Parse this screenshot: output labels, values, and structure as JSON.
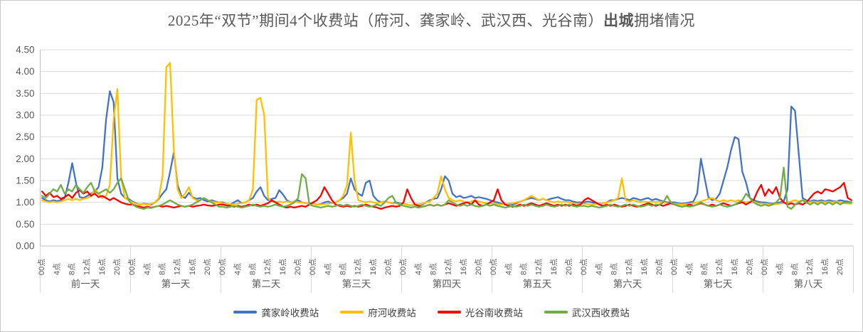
{
  "chart_data": {
    "type": "line",
    "title": {
      "full": "2025年“双节”期间4个收费站（府河、龚家岭、武汉西、光谷南）出城拥堵情况",
      "prefix": "2025年“双节”期间4个收费站（府河、龚家岭、武汉西、光谷南）",
      "bold": "出城",
      "suffix": "拥堵情况"
    },
    "y_axis": {
      "min": 0,
      "max": 4.5,
      "step": 0.5,
      "tick_decimals": 2
    },
    "grid": true,
    "legend_position": "bottom",
    "days": [
      "前一天",
      "第一天",
      "第二天",
      "第三天",
      "第四天",
      "第五天",
      "第六天",
      "第七天",
      "第八天"
    ],
    "hours_per_day": 24,
    "hour_tick_interval": 4,
    "hour_tick_labels": [
      "00点",
      "4点",
      "8点",
      "12点",
      "16点",
      "20点"
    ],
    "colors": {
      "gridline": "#d9d9d9",
      "axis": "#bfbfbf",
      "label_text": "#595959",
      "legend_text": "#404040"
    },
    "series": [
      {
        "name": "龚家岭收费站",
        "color": "#4472C4",
        "values": [
          1.1,
          1.05,
          1.02,
          1.05,
          1.03,
          1.05,
          1.1,
          1.45,
          1.9,
          1.45,
          1.12,
          1.1,
          1.15,
          1.2,
          1.25,
          1.35,
          1.8,
          2.9,
          3.55,
          3.3,
          1.55,
          1.2,
          1.1,
          1.08,
          1.02,
          0.98,
          0.95,
          0.97,
          0.96,
          0.95,
          1.0,
          1.08,
          1.2,
          1.3,
          1.7,
          2.15,
          1.4,
          1.15,
          1.1,
          1.22,
          1.12,
          1.08,
          1.1,
          1.05,
          1.02,
          1.05,
          1.02,
          1.0,
          1.0,
          0.97,
          0.95,
          1.0,
          1.05,
          0.98,
          1.0,
          1.05,
          1.1,
          1.25,
          1.35,
          1.15,
          1.05,
          1.08,
          1.1,
          1.28,
          1.18,
          1.05,
          1.0,
          1.02,
          1.05,
          1.0,
          0.98,
          0.97,
          0.98,
          0.95,
          0.96,
          1.0,
          1.02,
          0.98,
          1.0,
          1.05,
          1.1,
          1.2,
          1.55,
          1.3,
          1.2,
          1.15,
          1.45,
          1.5,
          1.15,
          1.05,
          1.0,
          1.02,
          1.0,
          0.98,
          1.0,
          0.98,
          0.97,
          0.95,
          0.93,
          0.95,
          0.96,
          0.95,
          1.0,
          1.05,
          1.08,
          1.1,
          1.3,
          1.6,
          1.5,
          1.2,
          1.12,
          1.15,
          1.1,
          1.12,
          1.15,
          1.1,
          1.12,
          1.1,
          1.08,
          1.05,
          1.02,
          1.0,
          0.97,
          0.95,
          0.96,
          0.95,
          0.98,
          1.02,
          1.05,
          1.08,
          1.1,
          1.08,
          1.05,
          1.08,
          1.05,
          1.08,
          1.1,
          1.12,
          1.08,
          1.05,
          1.05,
          1.02,
          1.0,
          1.0,
          1.0,
          1.02,
          1.0,
          0.98,
          0.97,
          0.98,
          1.0,
          1.05,
          1.05,
          1.08,
          1.1,
          1.08,
          1.05,
          1.1,
          1.08,
          1.05,
          1.08,
          1.1,
          1.05,
          1.08,
          1.05,
          1.02,
          1.0,
          1.0,
          1.0,
          0.98,
          0.97,
          0.98,
          1.0,
          1.02,
          1.2,
          2.0,
          1.55,
          1.12,
          1.05,
          1.08,
          1.2,
          1.5,
          1.8,
          2.2,
          2.5,
          2.45,
          1.7,
          1.45,
          1.1,
          1.05,
          1.02,
          1.0,
          1.0,
          0.98,
          0.97,
          0.98,
          1.0,
          1.02,
          1.3,
          3.2,
          3.1,
          2.1,
          1.1,
          1.05,
          1.02,
          1.05,
          1.03,
          1.05,
          1.02,
          1.05,
          1.03,
          1.02,
          1.05,
          1.03,
          1.02,
          1.0
        ]
      },
      {
        "name": "府河收费站",
        "color": "#FFC000",
        "values": [
          1.05,
          1.02,
          1.0,
          1.02,
          1.0,
          1.02,
          1.05,
          1.08,
          1.05,
          1.08,
          1.05,
          1.08,
          1.1,
          1.15,
          1.3,
          1.2,
          1.1,
          1.15,
          1.4,
          2.9,
          3.6,
          1.55,
          1.1,
          1.05,
          1.0,
          0.97,
          0.95,
          0.96,
          0.95,
          0.97,
          1.0,
          1.1,
          1.6,
          4.1,
          4.2,
          2.2,
          1.3,
          1.1,
          1.2,
          1.35,
          1.1,
          1.05,
          1.05,
          1.1,
          1.05,
          1.02,
          1.0,
          1.0,
          0.98,
          0.97,
          0.95,
          0.96,
          0.97,
          0.98,
          1.0,
          1.05,
          1.3,
          3.35,
          3.4,
          3.0,
          1.1,
          1.02,
          1.0,
          1.02,
          1.0,
          1.02,
          1.0,
          1.02,
          1.0,
          1.0,
          0.98,
          0.97,
          0.97,
          0.95,
          0.95,
          0.96,
          0.97,
          0.98,
          1.0,
          1.05,
          1.15,
          1.4,
          2.6,
          1.5,
          1.05,
          1.02,
          1.0,
          1.02,
          1.0,
          0.98,
          1.0,
          1.02,
          1.0,
          0.98,
          0.97,
          0.97,
          0.97,
          0.95,
          0.93,
          0.95,
          0.96,
          0.97,
          1.0,
          1.02,
          1.1,
          1.2,
          1.6,
          1.3,
          1.1,
          1.05,
          1.02,
          1.05,
          1.02,
          1.0,
          1.02,
          1.05,
          1.02,
          1.0,
          0.98,
          0.97,
          0.98,
          0.96,
          0.95,
          0.96,
          0.97,
          0.98,
          1.0,
          1.02,
          1.05,
          1.1,
          1.15,
          1.1,
          1.05,
          1.08,
          1.05,
          1.02,
          1.0,
          1.02,
          1.0,
          1.02,
          1.0,
          0.98,
          0.97,
          0.97,
          0.97,
          0.96,
          0.95,
          0.96,
          0.97,
          0.98,
          1.0,
          1.02,
          1.05,
          1.1,
          1.55,
          1.05,
          1.02,
          1.05,
          1.02,
          1.0,
          1.02,
          1.0,
          1.02,
          1.0,
          1.02,
          1.0,
          0.98,
          0.97,
          0.97,
          0.96,
          0.95,
          0.96,
          0.97,
          0.98,
          1.0,
          1.02,
          1.05,
          1.08,
          1.1,
          1.05,
          1.02,
          1.05,
          1.02,
          1.05,
          1.02,
          1.05,
          1.02,
          1.0,
          1.02,
          1.0,
          0.98,
          0.97,
          0.97,
          0.96,
          0.95,
          0.96,
          0.97,
          0.98,
          1.0,
          1.02,
          1.05,
          1.02,
          1.05,
          1.02,
          1.0,
          1.02,
          1.0,
          1.02,
          1.0,
          1.02,
          1.0,
          1.02,
          1.0,
          0.98,
          0.97,
          0.97
        ]
      },
      {
        "name": "光谷南收费站",
        "color": "#FF0000",
        "values": [
          1.25,
          1.15,
          1.22,
          1.12,
          1.15,
          1.08,
          1.12,
          1.18,
          1.1,
          1.22,
          1.28,
          1.2,
          1.25,
          1.15,
          1.2,
          1.12,
          1.15,
          1.1,
          1.05,
          1.1,
          1.05,
          1.0,
          0.97,
          0.95,
          0.95,
          0.92,
          0.9,
          0.88,
          0.9,
          0.88,
          0.9,
          0.92,
          0.9,
          0.92,
          0.9,
          0.88,
          0.9,
          0.92,
          0.9,
          0.92,
          0.9,
          0.92,
          0.93,
          0.95,
          0.93,
          0.92,
          0.93,
          0.95,
          0.95,
          0.93,
          0.92,
          0.9,
          0.92,
          0.9,
          0.92,
          0.95,
          0.93,
          0.95,
          0.92,
          0.95,
          0.98,
          1.05,
          1.0,
          0.95,
          0.9,
          0.88,
          0.9,
          0.88,
          0.9,
          0.92,
          0.9,
          0.95,
          1.0,
          1.05,
          1.15,
          1.35,
          1.2,
          1.05,
          0.95,
          0.92,
          0.9,
          0.92,
          0.9,
          0.92,
          0.9,
          0.92,
          0.95,
          0.92,
          0.9,
          0.88,
          0.85,
          0.88,
          0.9,
          0.92,
          0.9,
          0.92,
          1.0,
          1.3,
          1.1,
          0.95,
          0.92,
          0.9,
          0.92,
          0.95,
          0.92,
          0.95,
          0.92,
          0.95,
          0.98,
          0.95,
          0.92,
          0.95,
          0.98,
          1.0,
          0.95,
          1.05,
          0.95,
          0.92,
          0.95,
          1.0,
          1.05,
          1.3,
          1.05,
          0.95,
          0.92,
          0.9,
          0.92,
          0.95,
          0.92,
          0.95,
          0.98,
          0.95,
          0.92,
          0.95,
          0.98,
          0.95,
          0.92,
          0.95,
          0.92,
          0.95,
          0.92,
          0.95,
          0.92,
          0.95,
          1.05,
          1.1,
          1.05,
          1.0,
          0.95,
          0.92,
          0.95,
          0.92,
          0.95,
          0.92,
          0.9,
          0.92,
          0.95,
          0.92,
          0.9,
          0.92,
          0.95,
          0.98,
          0.95,
          0.92,
          0.95,
          0.92,
          0.95,
          0.98,
          0.95,
          0.92,
          0.9,
          0.92,
          0.95,
          0.92,
          0.95,
          0.98,
          0.95,
          0.92,
          0.95,
          0.92,
          0.95,
          0.98,
          0.95,
          0.92,
          0.95,
          0.98,
          1.0,
          0.95,
          1.0,
          1.05,
          1.25,
          1.4,
          1.15,
          1.3,
          1.2,
          1.35,
          1.1,
          1.0,
          0.95,
          0.98,
          0.95,
          0.98,
          0.95,
          1.0,
          1.1,
          1.2,
          1.25,
          1.2,
          1.3,
          1.28,
          1.25,
          1.3,
          1.35,
          1.45,
          1.1,
          1.05
        ]
      },
      {
        "name": "武汉西收费站",
        "color": "#70AD47",
        "values": [
          1.15,
          1.1,
          1.2,
          1.3,
          1.25,
          1.4,
          1.2,
          1.3,
          1.25,
          1.4,
          1.3,
          1.22,
          1.35,
          1.45,
          1.25,
          1.2,
          1.25,
          1.3,
          1.22,
          1.3,
          1.45,
          1.55,
          1.3,
          1.05,
          0.95,
          0.9,
          0.87,
          0.85,
          0.88,
          0.87,
          0.9,
          0.92,
          0.95,
          1.0,
          1.05,
          1.0,
          0.95,
          0.92,
          0.9,
          0.92,
          0.95,
          1.0,
          1.05,
          1.1,
          1.05,
          1.0,
          0.95,
          0.9,
          0.9,
          0.88,
          0.9,
          0.92,
          0.9,
          0.88,
          0.9,
          0.92,
          0.95,
          0.92,
          0.9,
          0.92,
          0.9,
          0.92,
          0.95,
          0.92,
          0.9,
          0.92,
          0.95,
          1.0,
          1.1,
          1.65,
          1.55,
          0.95,
          0.92,
          0.9,
          0.88,
          0.9,
          0.92,
          0.9,
          0.92,
          0.95,
          0.92,
          0.95,
          0.92,
          0.9,
          0.92,
          0.95,
          0.92,
          0.9,
          0.92,
          0.95,
          0.92,
          1.0,
          1.1,
          1.15,
          1.0,
          0.95,
          0.92,
          0.9,
          0.88,
          0.9,
          0.88,
          0.9,
          0.92,
          0.95,
          0.92,
          0.95,
          0.92,
          0.95,
          1.05,
          1.0,
          0.95,
          0.92,
          0.95,
          0.92,
          0.95,
          0.92,
          0.9,
          0.92,
          0.95,
          0.92,
          0.95,
          0.92,
          0.9,
          0.88,
          0.9,
          0.92,
          0.9,
          0.92,
          0.95,
          0.92,
          0.95,
          0.92,
          0.9,
          0.92,
          0.95,
          0.92,
          0.9,
          0.92,
          0.95,
          0.92,
          0.95,
          0.92,
          0.9,
          0.92,
          0.92,
          0.9,
          0.92,
          0.9,
          0.88,
          0.9,
          0.92,
          0.95,
          0.92,
          0.9,
          0.92,
          0.95,
          0.92,
          0.95,
          0.92,
          0.9,
          0.92,
          0.95,
          0.92,
          0.95,
          0.95,
          1.0,
          1.15,
          1.0,
          0.95,
          0.92,
          0.9,
          0.92,
          0.9,
          0.92,
          0.95,
          1.0,
          0.95,
          0.92,
          0.9,
          0.92,
          0.95,
          0.92,
          0.9,
          0.92,
          0.95,
          1.0,
          1.05,
          1.2,
          1.1,
          1.0,
          0.95,
          0.92,
          0.95,
          0.92,
          0.95,
          1.0,
          1.1,
          1.8,
          0.9,
          0.85,
          0.95,
          1.0,
          1.05,
          1.0,
          0.95,
          1.0,
          0.95,
          1.0,
          0.95,
          1.0,
          0.95,
          1.0,
          0.95,
          1.0,
          1.0,
          1.0
        ]
      }
    ]
  }
}
